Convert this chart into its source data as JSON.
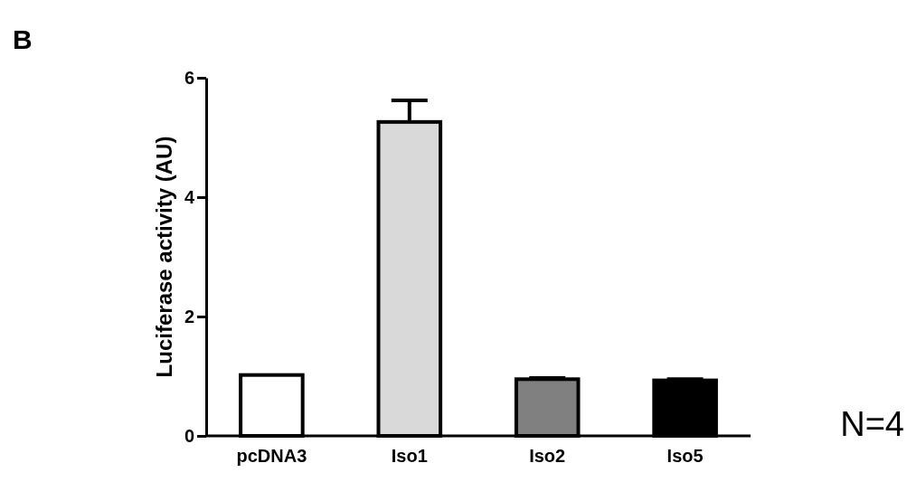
{
  "chart_data": {
    "type": "bar",
    "ylabel": "Luciferase activity (AU)",
    "categories": [
      "pcDNA3",
      "Iso1",
      "Iso2",
      "Iso5"
    ],
    "values": [
      1.02,
      5.26,
      0.95,
      0.93
    ],
    "colors": [
      "#ffffff",
      "#d9d9d9",
      "#808080",
      "#000000"
    ],
    "errors": [
      null,
      [
        5.26,
        5.62
      ],
      [
        0.95,
        0.97
      ],
      [
        0.93,
        0.95
      ]
    ],
    "ylim": [
      0,
      6
    ],
    "yticks": [
      0,
      2,
      4,
      6
    ],
    "grid": false,
    "annotations": [
      "B",
      "N=4"
    ]
  }
}
